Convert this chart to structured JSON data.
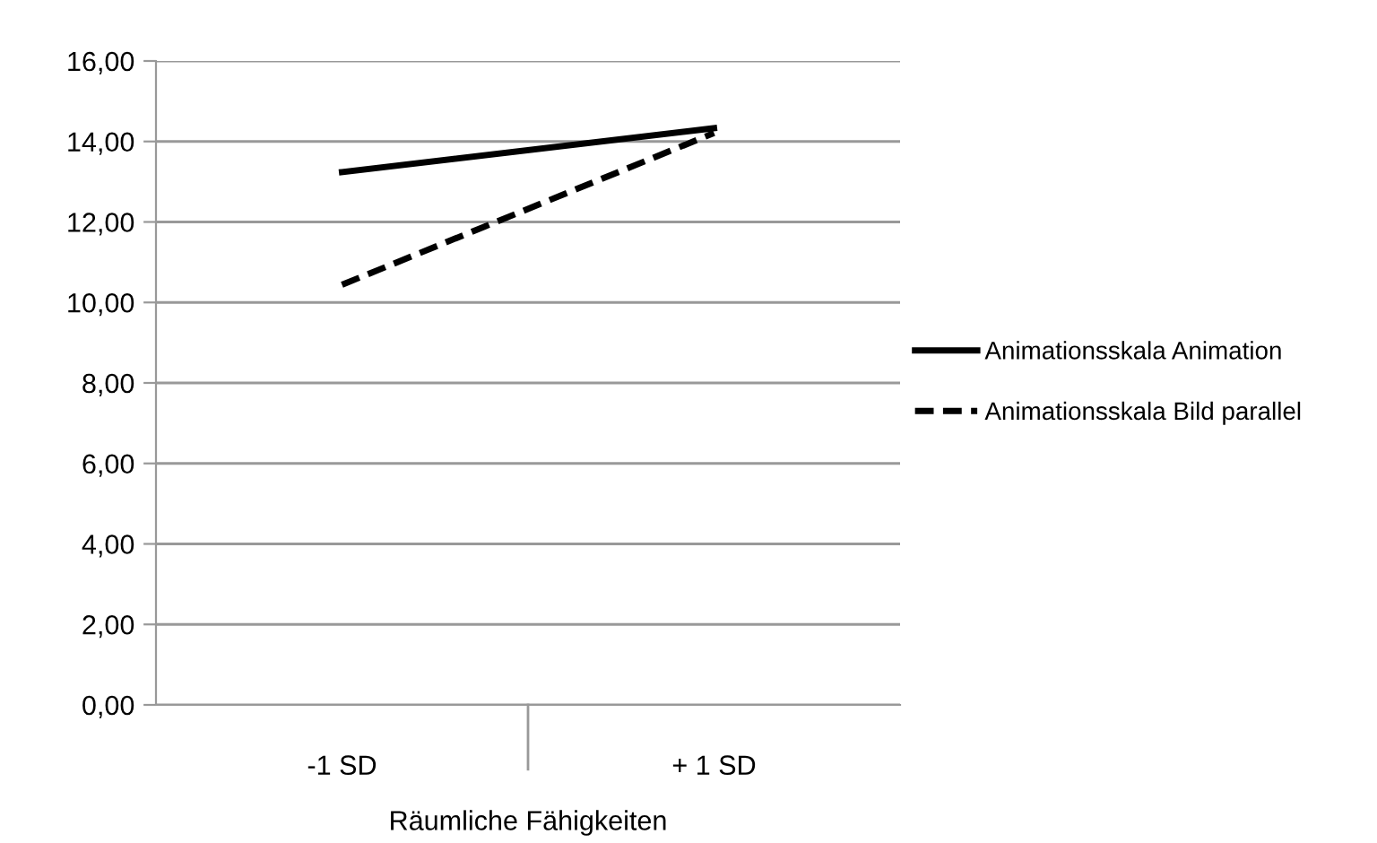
{
  "chart_data": {
    "type": "line",
    "categories": [
      "-1 SD",
      "+ 1 SD"
    ],
    "xlabel": "Räumliche Fähigkeiten",
    "series": [
      {
        "name": "Animationsskala Animation",
        "color": "#000000",
        "values": [
          13.24,
          14.33
        ],
        "line_style": "solid"
      },
      {
        "name": "Animationsskala Bild parallel",
        "color": "#000000",
        "values": [
          10.44,
          14.21
        ],
        "line_style": "dashed"
      }
    ],
    "ylim": [
      0,
      16
    ],
    "yticks": [
      {
        "value": 0,
        "label": "0,00"
      },
      {
        "value": 2,
        "label": "2,00"
      },
      {
        "value": 4,
        "label": "4,00"
      },
      {
        "value": 6,
        "label": "6,00"
      },
      {
        "value": 8,
        "label": "8,00"
      },
      {
        "value": 10,
        "label": "10,00"
      },
      {
        "value": 12,
        "label": "12,00"
      },
      {
        "value": 14,
        "label": "14,00"
      },
      {
        "value": 16,
        "label": "16,00"
      }
    ],
    "grid": "y",
    "legend": "right",
    "marker": "none"
  }
}
